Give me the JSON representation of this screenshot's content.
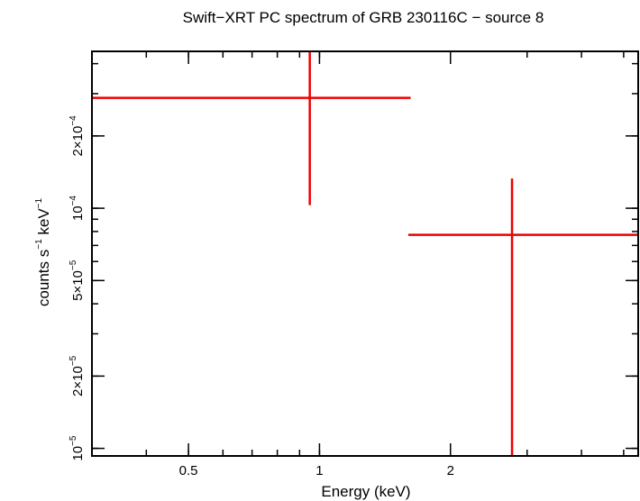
{
  "chart_data": {
    "type": "scatter",
    "title": "Swift−XRT PC spectrum of GRB 230116C − source 8",
    "xlabel": "Energy (keV)",
    "ylabel": {
      "base1": "counts s",
      "exp1": "−1",
      "base2": " keV",
      "exp2": "−1"
    },
    "xscale": "log",
    "yscale": "log",
    "xlim": [
      0.3,
      5.4
    ],
    "ylim": [
      9.3e-06,
      0.00045
    ],
    "x_ticks": [
      {
        "value": 0.5,
        "label": "0.5"
      },
      {
        "value": 1,
        "label": "1"
      },
      {
        "value": 2,
        "label": "2"
      }
    ],
    "y_ticks": [
      {
        "value": 1e-05,
        "mant": "",
        "base": "10",
        "exp": "−5"
      },
      {
        "value": 2e-05,
        "mant": "2×",
        "base": "10",
        "exp": "−5"
      },
      {
        "value": 5e-05,
        "mant": "5×",
        "base": "10",
        "exp": "−5"
      },
      {
        "value": 0.0001,
        "mant": "",
        "base": "10",
        "exp": "−4"
      },
      {
        "value": 0.0002,
        "mant": "2×",
        "base": "10",
        "exp": "−4"
      }
    ],
    "series": [
      {
        "color": "#ee0000",
        "points": [
          {
            "x": 0.95,
            "x_low": 0.3,
            "x_high": 1.62,
            "y": 0.000288,
            "y_low": 0.000103,
            "y_high": 0.00045
          },
          {
            "x": 2.77,
            "x_low": 1.6,
            "x_high": 5.4,
            "y": 7.75e-05,
            "y_low": 9.3e-06,
            "y_high": 0.000133
          }
        ]
      }
    ]
  }
}
